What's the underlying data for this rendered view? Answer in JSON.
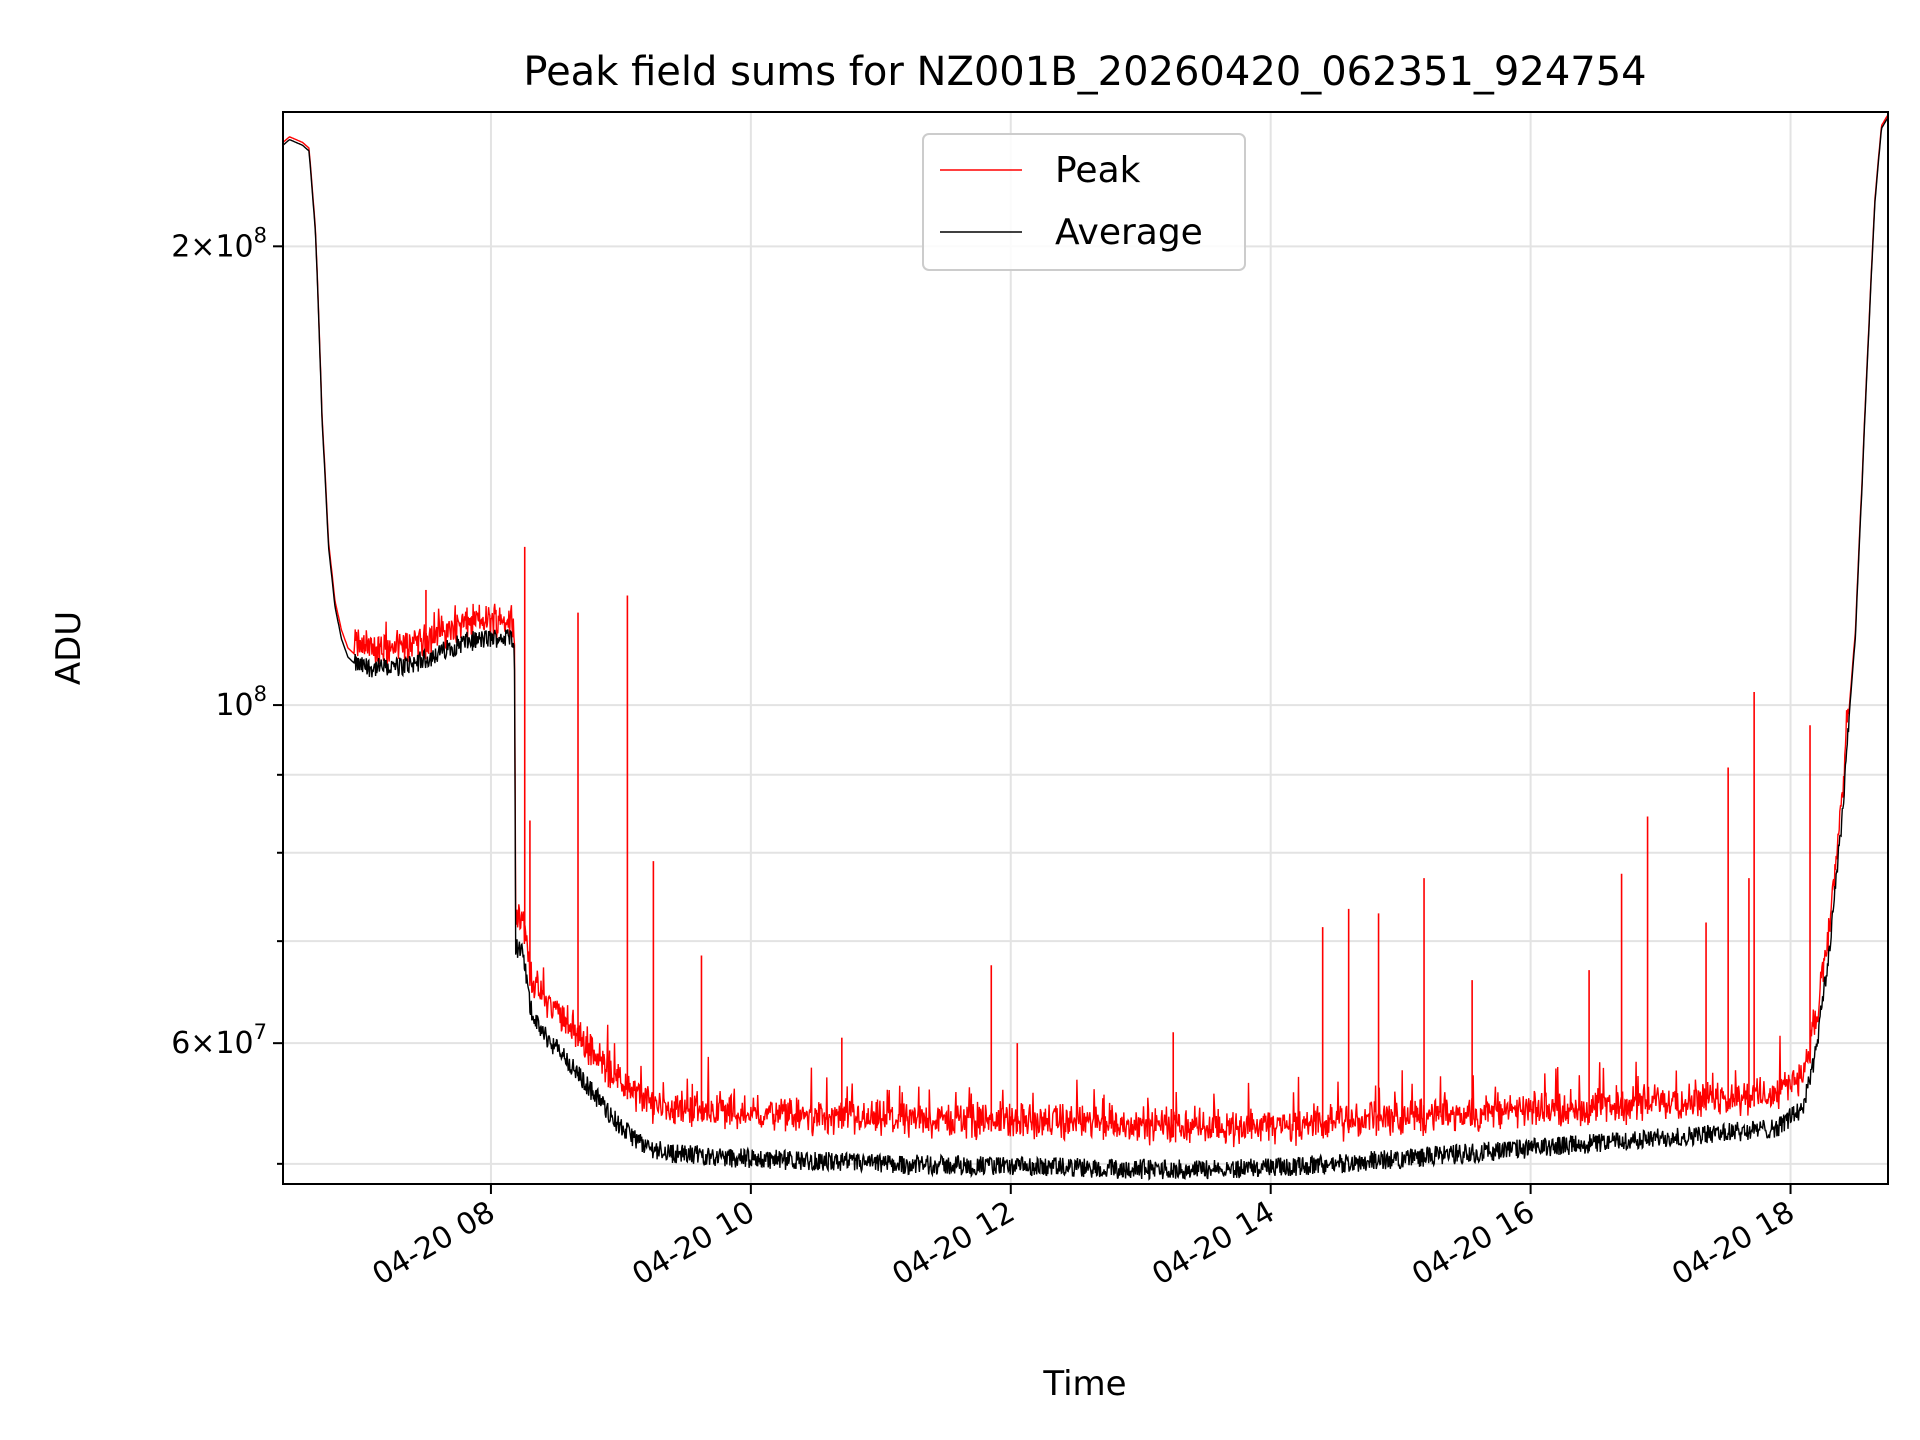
{
  "chart_data": {
    "type": "line",
    "title": "Peak field sums for NZ001B_20260420_062351_924754",
    "xlabel": "Time",
    "ylabel": "ADU",
    "yscale": "log",
    "ylim": [
      48500000,
      245000000
    ],
    "xlim_hours": [
      6.4,
      18.75
    ],
    "grid": true,
    "legend_position": "top-center",
    "x_ticks": [
      {
        "value": 8,
        "label": "04-20 08"
      },
      {
        "value": 10,
        "label": "04-20 10"
      },
      {
        "value": 12,
        "label": "04-20 12"
      },
      {
        "value": 14,
        "label": "04-20 14"
      },
      {
        "value": 16,
        "label": "04-20 16"
      },
      {
        "value": 18,
        "label": "04-20 18"
      }
    ],
    "y_major_ticks": [
      {
        "value": 60000000,
        "mantissa": "6",
        "exponent": "7"
      },
      {
        "value": 100000000,
        "mantissa": "",
        "exponent": "8"
      },
      {
        "value": 200000000,
        "mantissa": "2",
        "exponent": "8"
      }
    ],
    "y_minor_ticks": [
      50000000,
      70000000,
      80000000,
      90000000
    ],
    "series": [
      {
        "name": "Peak",
        "color": "#ff0000",
        "x_hours": [
          6.4,
          6.45,
          6.5,
          6.55,
          6.6,
          6.65,
          6.7,
          6.75,
          6.8,
          6.85,
          6.9,
          6.95,
          7.0,
          7.1,
          7.2,
          7.3,
          7.4,
          7.5,
          7.6,
          7.7,
          7.8,
          7.9,
          8.0,
          8.1,
          8.18,
          8.19,
          8.25,
          8.3,
          8.35,
          8.45,
          8.55,
          8.65,
          8.8,
          9.0,
          9.2,
          9.4,
          9.6,
          9.8,
          10.0,
          10.5,
          11.0,
          11.5,
          12.0,
          12.5,
          13.0,
          13.5,
          14.0,
          14.5,
          15.0,
          15.5,
          16.0,
          16.5,
          17.0,
          17.5,
          17.9,
          18.1,
          18.2,
          18.3,
          18.4,
          18.5,
          18.55,
          18.6,
          18.65,
          18.7,
          18.75
        ],
        "values": [
          234000000,
          236000000,
          235000000,
          234000000,
          232000000,
          205000000,
          155000000,
          128000000,
          117000000,
          112000000,
          109000000,
          108000000,
          107500000,
          107000000,
          107000000,
          107200000,
          107800000,
          108500000,
          109500000,
          110500000,
          111200000,
          111500000,
          111800000,
          112000000,
          112000000,
          72000000,
          71000000,
          66000000,
          64000000,
          62500000,
          61500000,
          60000000,
          58000000,
          55500000,
          54000000,
          53500000,
          53500000,
          53200000,
          53000000,
          52800000,
          52600000,
          52500000,
          52500000,
          52300000,
          52100000,
          52000000,
          52000000,
          52300000,
          52700000,
          53000000,
          53300000,
          53600000,
          54000000,
          54300000,
          54700000,
          56500000,
          61000000,
          70000000,
          86000000,
          112000000,
          140000000,
          175000000,
          215000000,
          240000000,
          244000000
        ]
      },
      {
        "name": "Average",
        "color": "#000000",
        "x_hours": [
          6.4,
          6.45,
          6.5,
          6.55,
          6.6,
          6.65,
          6.7,
          6.75,
          6.8,
          6.85,
          6.9,
          6.95,
          7.0,
          7.1,
          7.2,
          7.3,
          7.4,
          7.5,
          7.6,
          7.7,
          7.8,
          7.9,
          8.0,
          8.1,
          8.18,
          8.19,
          8.25,
          8.3,
          8.35,
          8.45,
          8.55,
          8.65,
          8.8,
          9.0,
          9.2,
          9.4,
          9.6,
          9.8,
          10.0,
          10.5,
          11.0,
          11.5,
          12.0,
          12.5,
          13.0,
          13.5,
          14.0,
          14.5,
          15.0,
          15.5,
          16.0,
          16.5,
          17.0,
          17.5,
          17.9,
          18.1,
          18.2,
          18.3,
          18.4,
          18.5,
          18.55,
          18.6,
          18.65,
          18.7,
          18.75
        ],
        "values": [
          233000000,
          235000000,
          234000000,
          233000000,
          231000000,
          204000000,
          154000000,
          127000000,
          116000000,
          110500000,
          107500000,
          106500000,
          106000000,
          105800000,
          105800000,
          106000000,
          106500000,
          107200000,
          108200000,
          109200000,
          110000000,
          110300000,
          110600000,
          110800000,
          110800000,
          69500000,
          68500000,
          63500000,
          61800000,
          60200000,
          59000000,
          57500000,
          55500000,
          52800000,
          51300000,
          50800000,
          50700000,
          50500000,
          50400000,
          50200000,
          50000000,
          49900000,
          49800000,
          49700000,
          49600000,
          49600000,
          49700000,
          50000000,
          50400000,
          50800000,
          51200000,
          51600000,
          52000000,
          52400000,
          52800000,
          54500000,
          59500000,
          69000000,
          85000000,
          111000000,
          139000000,
          174000000,
          214000000,
          239000000,
          243000000
        ]
      }
    ],
    "peak_spikes": [
      {
        "x_hours": 7.5,
        "value": 119000000
      },
      {
        "x_hours": 8.26,
        "value": 127000000
      },
      {
        "x_hours": 8.3,
        "value": 84000000
      },
      {
        "x_hours": 8.67,
        "value": 115000000
      },
      {
        "x_hours": 9.05,
        "value": 118000000
      },
      {
        "x_hours": 9.25,
        "value": 79000000
      },
      {
        "x_hours": 9.62,
        "value": 68500000
      },
      {
        "x_hours": 10.7,
        "value": 60500000
      },
      {
        "x_hours": 11.85,
        "value": 67500000
      },
      {
        "x_hours": 12.05,
        "value": 60000000
      },
      {
        "x_hours": 13.25,
        "value": 61000000
      },
      {
        "x_hours": 14.4,
        "value": 71500000
      },
      {
        "x_hours": 14.6,
        "value": 73500000
      },
      {
        "x_hours": 14.83,
        "value": 73000000
      },
      {
        "x_hours": 15.18,
        "value": 77000000
      },
      {
        "x_hours": 15.55,
        "value": 66000000
      },
      {
        "x_hours": 16.45,
        "value": 67000000
      },
      {
        "x_hours": 16.7,
        "value": 77500000
      },
      {
        "x_hours": 16.9,
        "value": 84500000
      },
      {
        "x_hours": 17.35,
        "value": 72000000
      },
      {
        "x_hours": 17.52,
        "value": 91000000
      },
      {
        "x_hours": 17.68,
        "value": 77000000
      },
      {
        "x_hours": 17.72,
        "value": 102000000
      },
      {
        "x_hours": 18.15,
        "value": 97000000
      }
    ]
  }
}
